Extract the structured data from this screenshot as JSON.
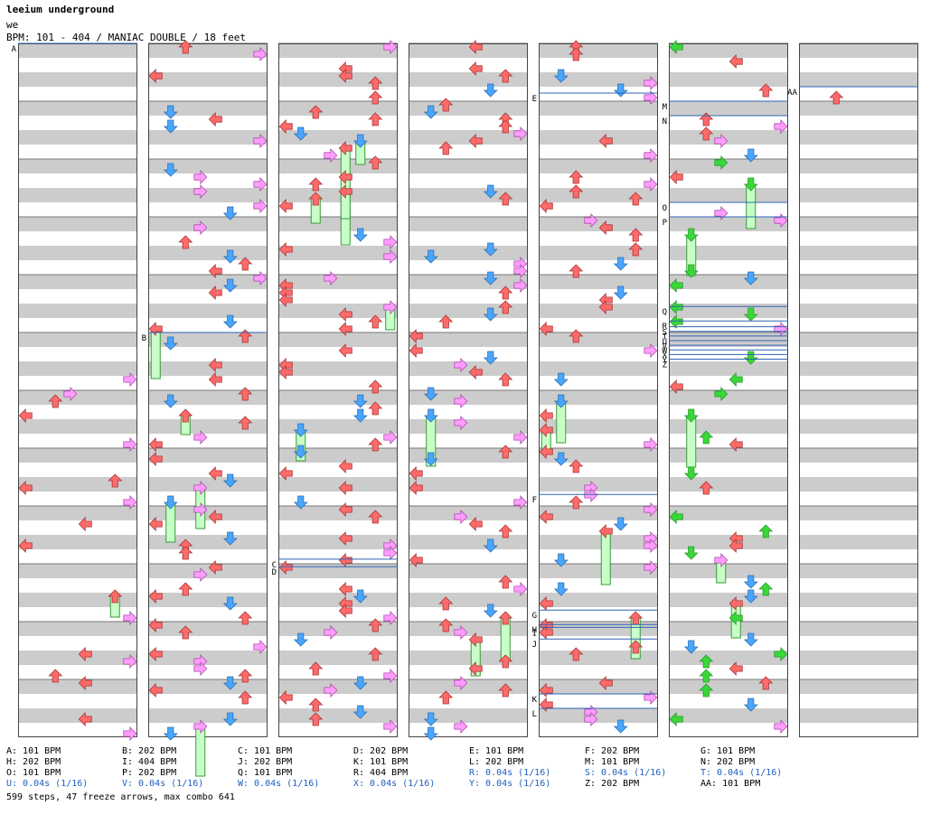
{
  "song": {
    "title": "leeium underground",
    "artist": "we",
    "bpm_label": "BPM:",
    "bpm_range": "101 - 404",
    "difficulty": "MANIAC DOUBLE",
    "feet": "18 feet"
  },
  "colors": {
    "background": "#ffffff",
    "band": "#cccccc",
    "border": "#444444",
    "guide_line": "#2f64b4",
    "left": "#ff6a6a",
    "down": "#4aa5ff",
    "up": "#ff6a6a",
    "right": "#ff9eff",
    "eighth": "#4aa5ff",
    "sixteenth": "#ffd93a",
    "other": "#38d838",
    "freeze": "#c8ffc8"
  },
  "chart": {
    "columns": 7,
    "measures_per_column": 12,
    "measure_height": 64,
    "lanes": 8
  },
  "markers": [
    {
      "label": "A",
      "col": 0,
      "pos": 0.0
    },
    {
      "label": "B",
      "col": 1,
      "pos": 5.0
    },
    {
      "label": "C",
      "col": 2,
      "pos": 8.92
    },
    {
      "label": "D",
      "col": 2,
      "pos": 9.05
    },
    {
      "label": "E",
      "col": 4,
      "pos": 0.86
    },
    {
      "label": "F",
      "col": 4,
      "pos": 7.8
    },
    {
      "label": "G",
      "col": 4,
      "pos": 9.8
    },
    {
      "label": "H",
      "col": 4,
      "pos": 10.05
    },
    {
      "label": "I",
      "col": 4,
      "pos": 10.1
    },
    {
      "label": "J",
      "col": 4,
      "pos": 10.3
    },
    {
      "label": "K",
      "col": 4,
      "pos": 11.25
    },
    {
      "label": "L",
      "col": 4,
      "pos": 11.5
    },
    {
      "label": "M",
      "col": 5,
      "pos": 1.0
    },
    {
      "label": "N",
      "col": 5,
      "pos": 1.25
    },
    {
      "label": "O",
      "col": 5,
      "pos": 2.75
    },
    {
      "label": "P",
      "col": 5,
      "pos": 3.0
    },
    {
      "label": "Q",
      "col": 5,
      "pos": 4.55
    },
    {
      "label": "R",
      "col": 5,
      "pos": 4.8
    },
    {
      "label": "S",
      "col": 5,
      "pos": 4.9
    },
    {
      "label": "T",
      "col": 5,
      "pos": 4.98
    },
    {
      "label": "U",
      "col": 5,
      "pos": 5.06
    },
    {
      "label": "V",
      "col": 5,
      "pos": 5.14
    },
    {
      "label": "W",
      "col": 5,
      "pos": 5.22
    },
    {
      "label": "X",
      "col": 5,
      "pos": 5.3
    },
    {
      "label": "Y",
      "col": 5,
      "pos": 5.38
    },
    {
      "label": "Z",
      "col": 5,
      "pos": 5.46
    },
    {
      "label": "AA",
      "col": 6,
      "pos": 0.75
    }
  ],
  "legend": [
    [
      {
        "text": "A: 101 BPM",
        "stop": false
      },
      {
        "text": "H: 202 BPM",
        "stop": false
      },
      {
        "text": "O: 101 BPM",
        "stop": false
      },
      {
        "text": "U: 0.04s (1/16)",
        "stop": true
      }
    ],
    [
      {
        "text": "B: 202 BPM",
        "stop": false
      },
      {
        "text": "I: 404 BPM",
        "stop": false
      },
      {
        "text": "P: 202 BPM",
        "stop": false
      },
      {
        "text": "V: 0.04s (1/16)",
        "stop": true
      }
    ],
    [
      {
        "text": "C: 101 BPM",
        "stop": false
      },
      {
        "text": "J: 202 BPM",
        "stop": false
      },
      {
        "text": "Q: 101 BPM",
        "stop": false
      },
      {
        "text": "W: 0.04s (1/16)",
        "stop": true
      }
    ],
    [
      {
        "text": "D: 202 BPM",
        "stop": false
      },
      {
        "text": "K: 101 BPM",
        "stop": false
      },
      {
        "text": "R: 404 BPM",
        "stop": false
      },
      {
        "text": "X: 0.04s (1/16)",
        "stop": true
      }
    ],
    [
      {
        "text": "E: 101 BPM",
        "stop": false
      },
      {
        "text": "L: 202 BPM",
        "stop": false
      },
      {
        "text": "R: 0.04s (1/16)",
        "stop": true
      },
      {
        "text": "Y: 0.04s (1/16)",
        "stop": true
      }
    ],
    [
      {
        "text": "F: 202 BPM",
        "stop": false
      },
      {
        "text": "M: 101 BPM",
        "stop": false
      },
      {
        "text": "S: 0.04s (1/16)",
        "stop": true
      },
      {
        "text": "Z: 202 BPM",
        "stop": false
      }
    ],
    [
      {
        "text": "G: 101 BPM",
        "stop": false
      },
      {
        "text": "N: 202 BPM",
        "stop": false
      },
      {
        "text": "T: 0.04s (1/16)",
        "stop": true
      },
      {
        "text": "AA: 101 BPM",
        "stop": false
      }
    ]
  ],
  "footer": {
    "steps": "599 steps, 47 freeze arrows, max combo 641"
  }
}
